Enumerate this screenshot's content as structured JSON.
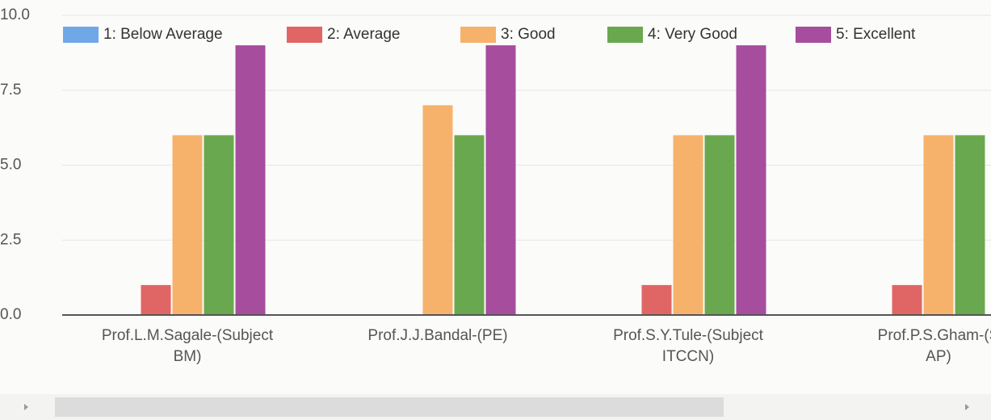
{
  "chart_data": {
    "type": "bar",
    "categories": [
      [
        "Prof.L.M.Sagale-(Subject",
        "BM)"
      ],
      [
        "Prof.J.J.Bandal-(PE)"
      ],
      [
        "Prof.S.Y.Tule-(Subject",
        "ITCCN)"
      ],
      [
        "Prof.P.S.Gham-(S",
        "AP)"
      ]
    ],
    "series": [
      {
        "name": "1: Below Average",
        "color": "#6fa8e6",
        "values": [
          0,
          0,
          0,
          0
        ]
      },
      {
        "name": "2: Average",
        "color": "#e06666",
        "values": [
          1,
          0,
          1,
          1
        ]
      },
      {
        "name": "3: Good",
        "color": "#f6b26b",
        "values": [
          6,
          7,
          6,
          6
        ]
      },
      {
        "name": "4: Very Good",
        "color": "#6aa84f",
        "values": [
          6,
          6,
          6,
          6
        ]
      },
      {
        "name": "5: Excellent",
        "color": "#a64d9e",
        "values": [
          9,
          9,
          9,
          null
        ]
      }
    ],
    "ylim": [
      0,
      10
    ],
    "yticks": [
      {
        "value": 0,
        "label": "0.0"
      },
      {
        "value": 2.5,
        "label": "2.5"
      },
      {
        "value": 5,
        "label": "5.0"
      },
      {
        "value": 7.5,
        "label": "7.5"
      },
      {
        "value": 10,
        "label": "10.0"
      }
    ],
    "grid": true,
    "legend": "top"
  }
}
